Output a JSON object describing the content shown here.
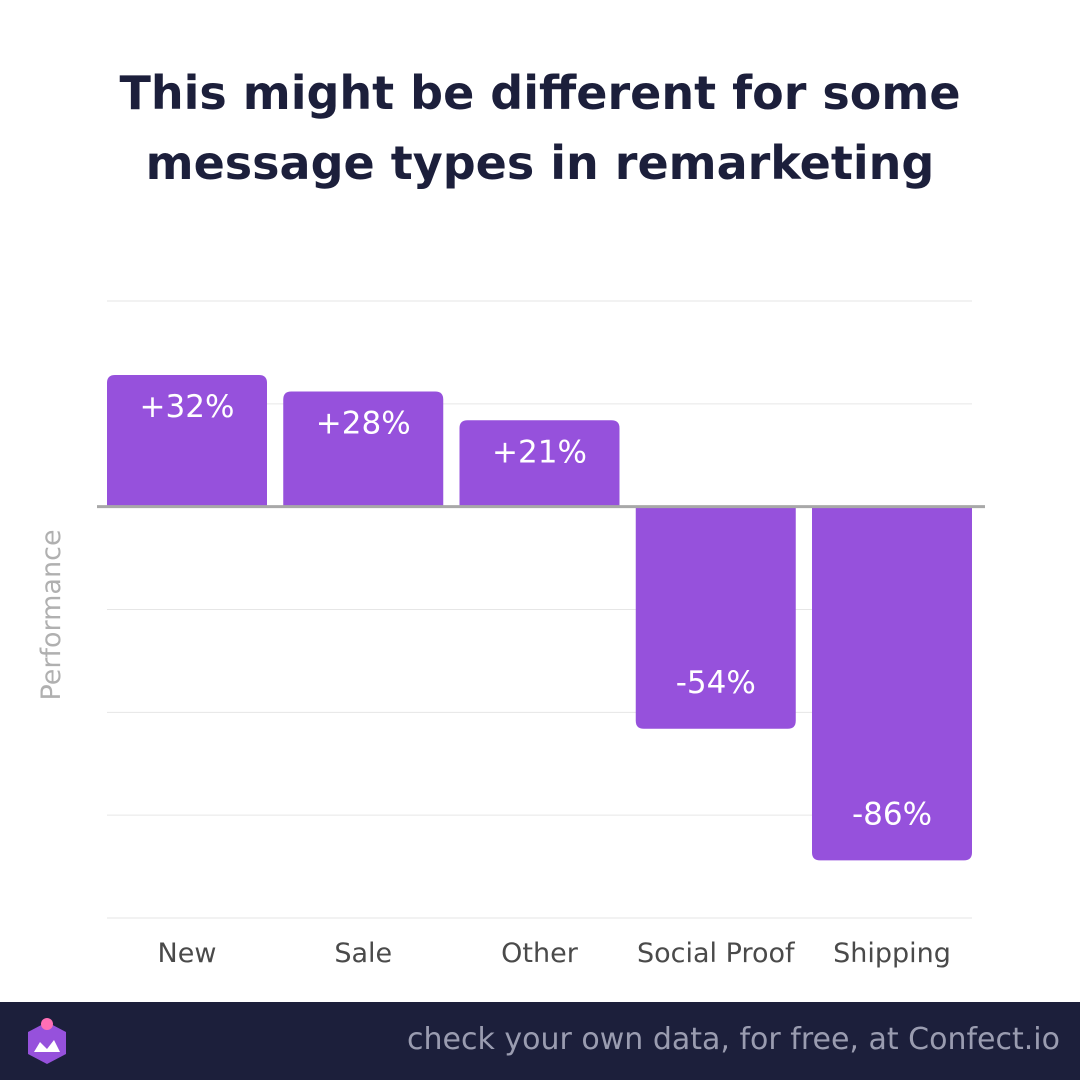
{
  "header": {
    "title_line1": "This might be different for some",
    "title_line2": "message types in remarketing"
  },
  "footer": {
    "text": "check your own data, for free, at Confect.io",
    "logo_icon": "confect-logo-icon"
  },
  "colors": {
    "bar": "#9651dc",
    "axis": "#a8a8a8",
    "grid": "#e6e6e6",
    "footer_bg": "#1c1f3b",
    "footer_text": "#9a9cb0",
    "title": "#1c1f3b",
    "label": "#4a4a4a"
  },
  "chart_data": {
    "type": "bar",
    "ylabel": "Performance",
    "xlabel": "",
    "categories": [
      "New",
      "Sale",
      "Other",
      "Social Proof",
      "Shipping"
    ],
    "values": [
      32,
      28,
      21,
      -54,
      -86
    ],
    "labels": [
      "+32%",
      "+28%",
      "+21%",
      "-54%",
      "-86%"
    ],
    "ylim": [
      -100,
      50
    ],
    "grid": true,
    "legend": "none"
  }
}
